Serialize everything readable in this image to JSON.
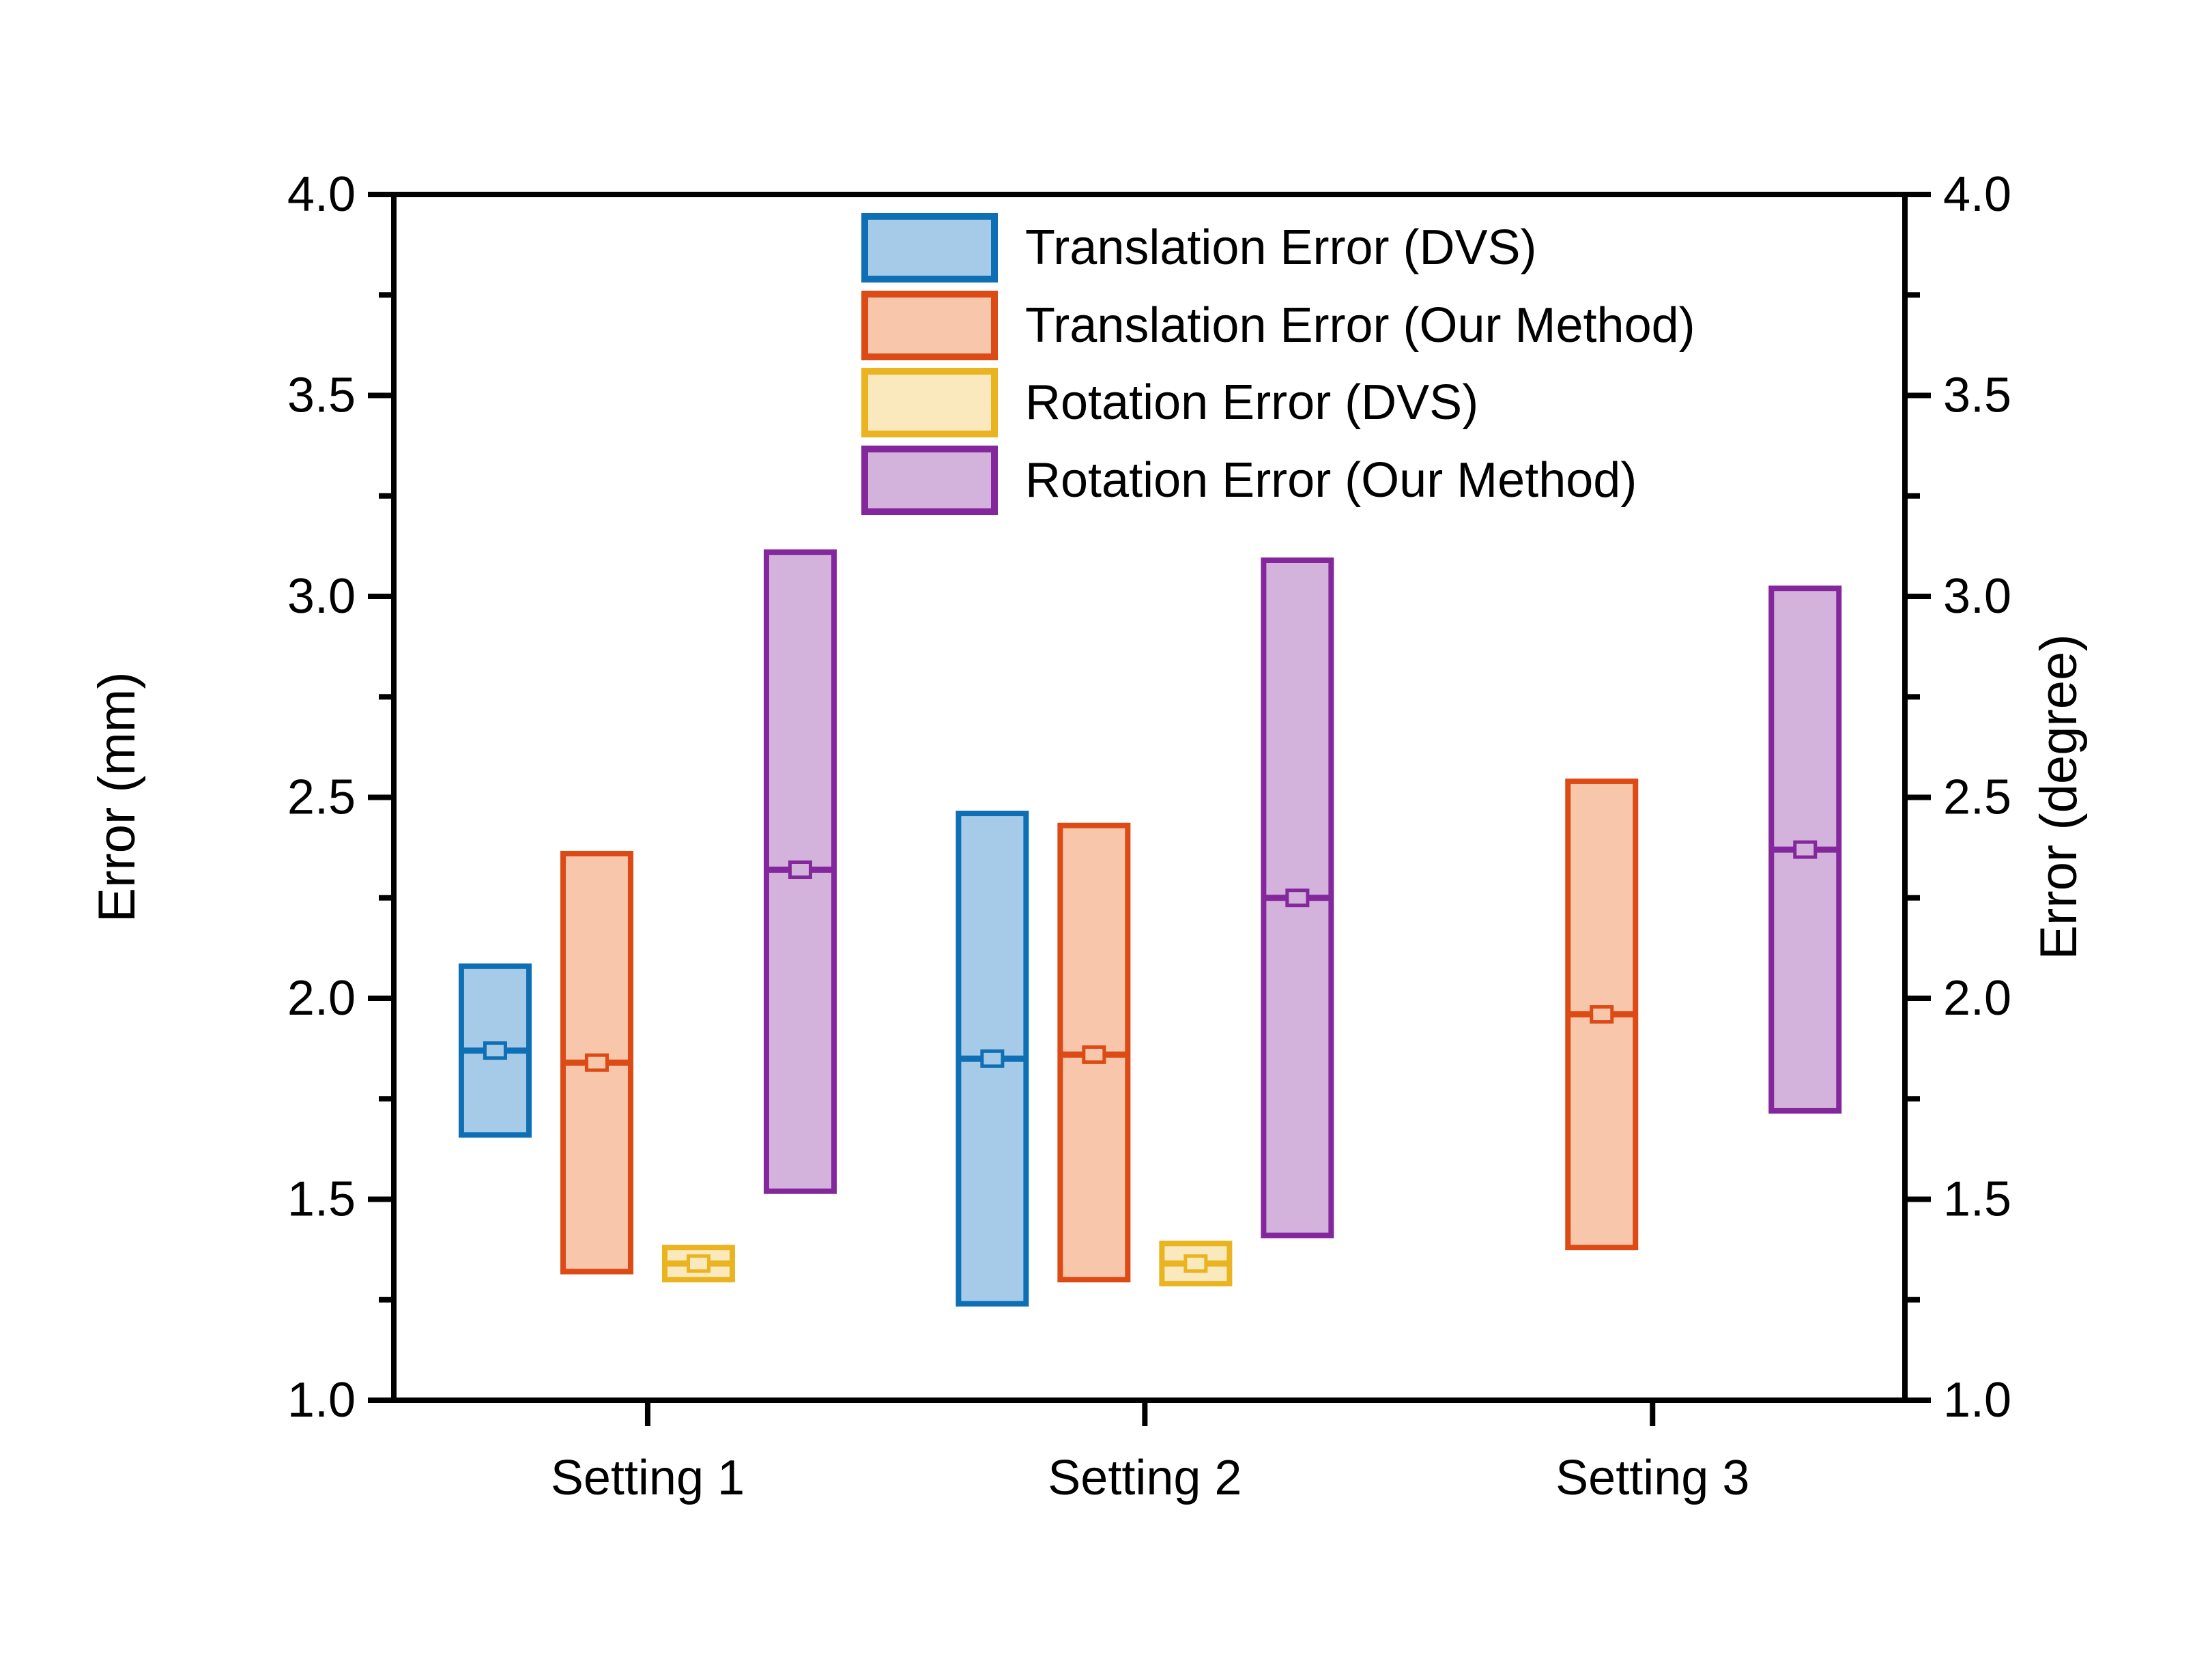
{
  "figure": {
    "background_color": "#ffffff",
    "title": ""
  },
  "chart_data": {
    "type": "box",
    "title": "",
    "categories": [
      "Setting 1",
      "Setting 2",
      "Setting 3"
    ],
    "axes": {
      "left": {
        "title": "Error (mm)",
        "min": 1.0,
        "max": 4.0,
        "major_ticks": [
          {
            "value": 1.0,
            "label": "1.0"
          },
          {
            "value": 1.5,
            "label": "1.5"
          },
          {
            "value": 2.0,
            "label": "2.0"
          },
          {
            "value": 2.5,
            "label": "2.5"
          },
          {
            "value": 3.0,
            "label": "3.0"
          },
          {
            "value": 3.5,
            "label": "3.5"
          },
          {
            "value": 4.0,
            "label": "4.0"
          }
        ],
        "minor_ticks": [
          1.25,
          1.75,
          2.25,
          2.75,
          3.25,
          3.75
        ]
      },
      "right": {
        "title": "Error (degree)",
        "min": 1.0,
        "max": 4.0,
        "major_ticks": [
          {
            "value": 1.0,
            "label": "1.0"
          },
          {
            "value": 1.5,
            "label": "1.5"
          },
          {
            "value": 2.0,
            "label": "2.0"
          },
          {
            "value": 2.5,
            "label": "2.5"
          },
          {
            "value": 3.0,
            "label": "3.0"
          },
          {
            "value": 3.5,
            "label": "3.5"
          },
          {
            "value": 4.0,
            "label": "4.0"
          }
        ],
        "minor_ticks": [
          1.25,
          1.75,
          2.25,
          2.75,
          3.25,
          3.75
        ]
      }
    },
    "grid": "off",
    "legend_position": "top-center-inside",
    "axis_color": "#000000",
    "series": [
      {
        "name": "Translation Error (DVS)",
        "border_color": "#0F6FB4",
        "fill_color": "#A6CBE8",
        "boxes": [
          {
            "category": "Setting 1",
            "low": 1.66,
            "high": 2.08,
            "median": 1.87,
            "mean": 1.87
          },
          {
            "category": "Setting 2",
            "low": 1.24,
            "high": 2.46,
            "median": 1.85,
            "mean": 1.85
          }
        ]
      },
      {
        "name": "Translation Error (Our Method)",
        "border_color": "#DC4A16",
        "fill_color": "#F7C6AB",
        "boxes": [
          {
            "category": "Setting 1",
            "low": 1.32,
            "high": 2.36,
            "median": 1.84,
            "mean": 1.84
          },
          {
            "category": "Setting 2",
            "low": 1.3,
            "high": 2.43,
            "median": 1.86,
            "mean": 1.86
          },
          {
            "category": "Setting 3",
            "low": 1.38,
            "high": 2.54,
            "median": 1.96,
            "mean": 1.96
          }
        ]
      },
      {
        "name": "Rotation Error (DVS)",
        "border_color": "#E9B41F",
        "fill_color": "#FBE9BE",
        "boxes": [
          {
            "category": "Setting 1",
            "low": 1.3,
            "high": 1.38,
            "median": 1.34,
            "mean": 1.34
          },
          {
            "category": "Setting 2",
            "low": 1.29,
            "high": 1.39,
            "median": 1.34,
            "mean": 1.34
          }
        ]
      },
      {
        "name": "Rotation Error (Our Method)",
        "border_color": "#84279C",
        "fill_color": "#D3B3DC",
        "boxes": [
          {
            "category": "Setting 1",
            "low": 1.52,
            "high": 3.11,
            "median": 2.32,
            "mean": 2.32
          },
          {
            "category": "Setting 2",
            "low": 1.41,
            "high": 3.09,
            "median": 2.25,
            "mean": 2.25
          },
          {
            "category": "Setting 3",
            "low": 1.72,
            "high": 3.02,
            "median": 2.37,
            "mean": 2.37
          }
        ]
      }
    ]
  }
}
